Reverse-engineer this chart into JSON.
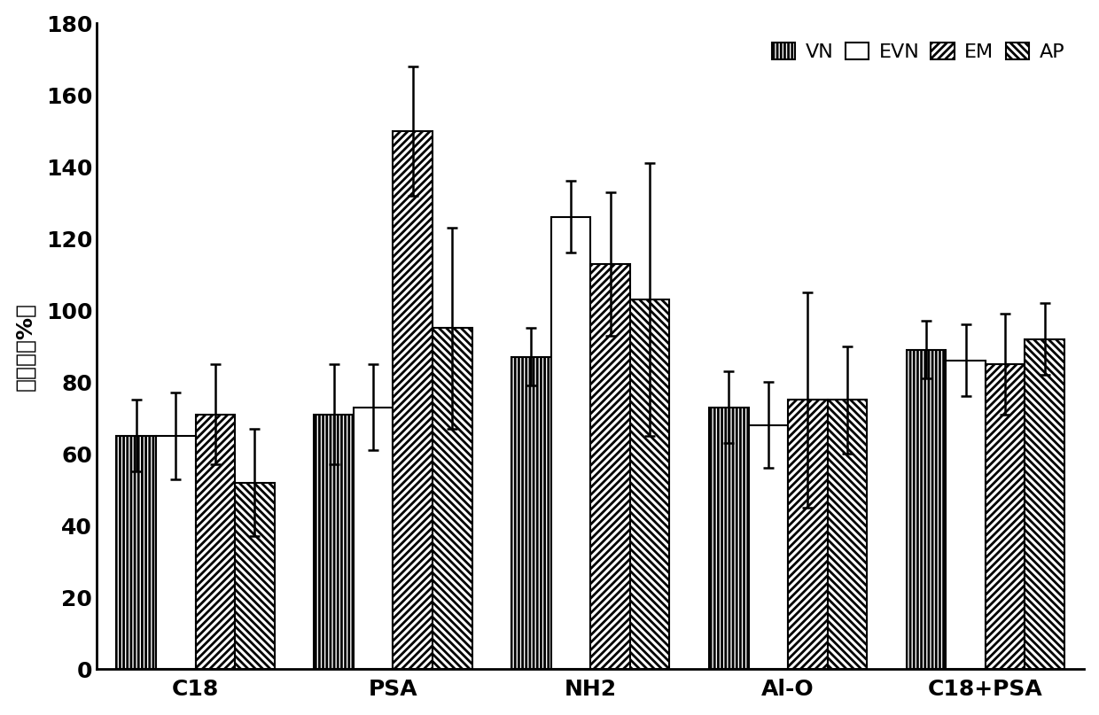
{
  "categories": [
    "C18",
    "PSA",
    "NH2",
    "Al-O",
    "C18+PSA"
  ],
  "series": [
    "VN",
    "EVN",
    "EM",
    "AP"
  ],
  "values": {
    "VN": [
      65,
      71,
      87,
      73,
      89
    ],
    "EVN": [
      65,
      73,
      126,
      68,
      86
    ],
    "EM": [
      71,
      150,
      113,
      75,
      85
    ],
    "AP": [
      52,
      95,
      103,
      75,
      92
    ]
  },
  "errors": {
    "VN": [
      10,
      14,
      8,
      10,
      8
    ],
    "EVN": [
      12,
      12,
      10,
      12,
      10
    ],
    "EM": [
      14,
      18,
      20,
      30,
      14
    ],
    "AP": [
      15,
      28,
      38,
      15,
      10
    ]
  },
  "ylabel": "回收率（%）",
  "ylim": [
    0,
    180
  ],
  "yticks": [
    0,
    20,
    40,
    60,
    80,
    100,
    120,
    140,
    160,
    180
  ],
  "bar_width": 0.2,
  "tick_fontsize": 18,
  "label_fontsize": 18,
  "legend_fontsize": 16,
  "legend_labels": [
    "VN",
    "EVN",
    "EM",
    "AP"
  ]
}
